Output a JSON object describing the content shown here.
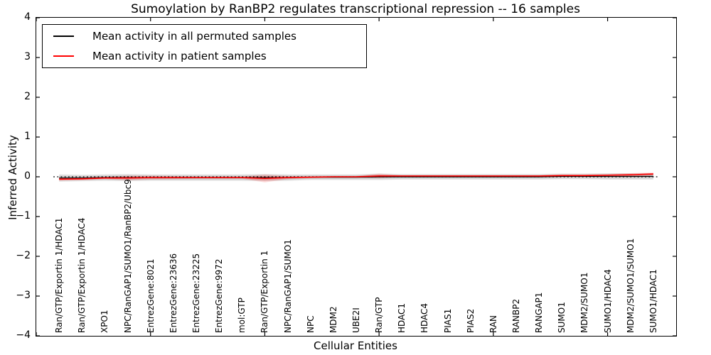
{
  "title": "Sumoylation by RanBP2 regulates transcriptional repression -- 16 samples",
  "axes": {
    "ylabel": "Inferred Activity",
    "xlabel": "Cellular Entities",
    "yticks": [
      {
        "label": "4",
        "value": 4
      },
      {
        "label": "3",
        "value": 3
      },
      {
        "label": "2",
        "value": 2
      },
      {
        "label": "1",
        "value": 1
      },
      {
        "label": "0",
        "value": 0
      },
      {
        "label": "−1",
        "value": -1
      },
      {
        "label": "−2",
        "value": -2
      },
      {
        "label": "−3",
        "value": -3
      },
      {
        "label": "−4",
        "value": -4
      }
    ]
  },
  "legend": {
    "items": [
      {
        "label": "Mean activity in all permuted samples",
        "color": "#000000"
      },
      {
        "label": "Mean activity in patient samples",
        "color": "#ff0000"
      }
    ]
  },
  "chart_data": {
    "type": "line",
    "title": "Sumoylation by RanBP2 regulates transcriptional repression -- 16 samples",
    "xlabel": "Cellular Entities",
    "ylabel": "Inferred Activity",
    "ylim": [
      -4,
      4
    ],
    "xlim": [
      0,
      28
    ],
    "xticks": [
      0,
      5,
      10,
      15,
      20,
      25
    ],
    "grid": false,
    "legend_position": "upper left",
    "zero_line": {
      "style": "dotted",
      "y": 0,
      "color": "#000000"
    },
    "categories": [
      "Ran/GTP/Exportin 1/HDAC1",
      "Ran/GTP/Exportin 1/HDAC4",
      "XPO1",
      "NPC/RanGAP1/SUMO1/RanBP2/Ubc9",
      "EntrezGene:8021",
      "EntrezGene:23636",
      "EntrezGene:23225",
      "EntrezGene:9972",
      "mol:GTP",
      "Ran/GTP/Exportin 1",
      "NPC/RanGAP1/SUMO1",
      "NPC",
      "MDM2",
      "UBE2I",
      "Ran/GTP",
      "HDAC1",
      "HDAC4",
      "PIAS1",
      "PIAS2",
      "RAN",
      "RANBP2",
      "RANGAP1",
      "SUMO1",
      "MDM2/SUMO1",
      "SUMO1/HDAC4",
      "MDM2/SUMO1/SUMO1",
      "SUMO1/HDAC1"
    ],
    "series": [
      {
        "name": "Mean activity in all permuted samples",
        "color": "#000000",
        "values": [
          -0.03,
          -0.03,
          -0.02,
          -0.02,
          -0.02,
          -0.02,
          -0.02,
          -0.02,
          -0.02,
          -0.02,
          -0.02,
          -0.01,
          -0.01,
          -0.01,
          0.0,
          0.0,
          0.0,
          0.0,
          0.0,
          0.0,
          0.0,
          0.0,
          0.01,
          0.01,
          0.01,
          0.01,
          0.01
        ],
        "band": [
          0.09,
          0.08,
          0.08,
          0.09,
          0.08,
          0.08,
          0.08,
          0.08,
          0.08,
          0.09,
          0.08,
          0.07,
          0.07,
          0.07,
          0.08,
          0.07,
          0.07,
          0.07,
          0.07,
          0.07,
          0.07,
          0.07,
          0.07,
          0.07,
          0.08,
          0.08,
          0.08
        ]
      },
      {
        "name": "Mean activity in patient samples",
        "color": "#ff0000",
        "values": [
          -0.06,
          -0.05,
          -0.03,
          -0.03,
          -0.02,
          -0.02,
          -0.02,
          -0.02,
          -0.02,
          -0.04,
          -0.02,
          -0.01,
          0.0,
          0.0,
          0.02,
          0.02,
          0.02,
          0.02,
          0.02,
          0.02,
          0.02,
          0.02,
          0.03,
          0.03,
          0.04,
          0.05,
          0.07
        ],
        "band": [
          0.04,
          0.04,
          0.03,
          0.06,
          0.05,
          0.04,
          0.03,
          0.03,
          0.03,
          0.1,
          0.04,
          0.02,
          0.02,
          0.02,
          0.06,
          0.02,
          0.02,
          0.02,
          0.02,
          0.02,
          0.02,
          0.02,
          0.03,
          0.03,
          0.03,
          0.04,
          0.04
        ]
      }
    ]
  }
}
